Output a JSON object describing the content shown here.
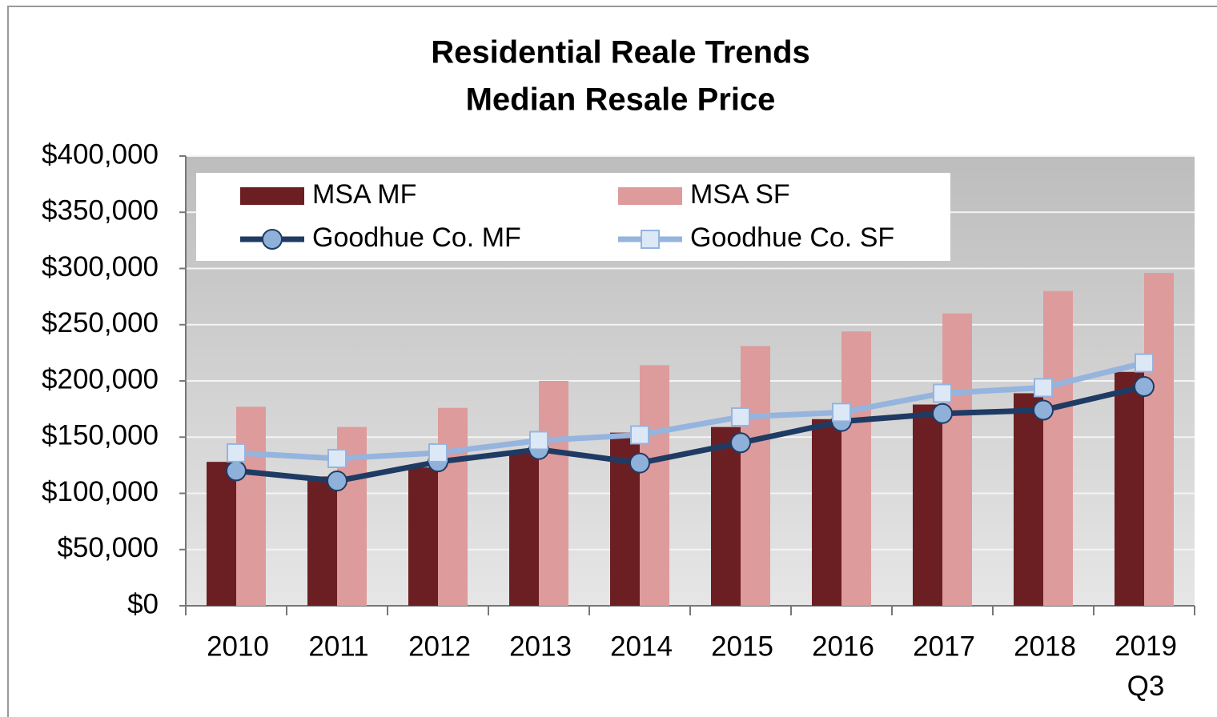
{
  "chart_data": {
    "type": "bar",
    "title": [
      "Residential Reale Trends",
      "Median Resale Price"
    ],
    "categories": [
      "2010",
      "2011",
      "2012",
      "2013",
      "2014",
      "2015",
      "2016",
      "2017",
      "2018",
      "2019 Q3"
    ],
    "series": [
      {
        "name": "MSA MF",
        "type": "bar",
        "color": "#6b1f22",
        "values": [
          128000,
          115000,
          123000,
          137000,
          154000,
          159000,
          166000,
          179000,
          189000,
          208000
        ]
      },
      {
        "name": "MSA SF",
        "type": "bar",
        "color": "#de9b9b",
        "values": [
          177000,
          159000,
          176000,
          200000,
          214000,
          231000,
          244000,
          260000,
          280000,
          296000
        ]
      },
      {
        "name": "Goodhue Co. MF",
        "type": "line",
        "color": "#1f3b63",
        "marker": "circle",
        "marker_color": "#8fb1d9",
        "values": [
          120000,
          111000,
          128000,
          139000,
          127000,
          145000,
          164000,
          171000,
          174000,
          195000
        ]
      },
      {
        "name": "Goodhue Co. SF",
        "type": "line",
        "color": "#95b4de",
        "marker": "square",
        "marker_color": "#dde8f6",
        "values": [
          136000,
          131000,
          136000,
          147000,
          152000,
          168000,
          172000,
          189000,
          194000,
          216000
        ]
      }
    ],
    "ylim": [
      0,
      400000
    ],
    "yticks": [
      {
        "value": 0,
        "label": "$0"
      },
      {
        "value": 50000,
        "label": "$50,000"
      },
      {
        "value": 100000,
        "label": "$100,000"
      },
      {
        "value": 150000,
        "label": "$150,000"
      },
      {
        "value": 200000,
        "label": "$200,000"
      },
      {
        "value": 250000,
        "label": "$250,000"
      },
      {
        "value": 300000,
        "label": "$300,000"
      },
      {
        "value": 350000,
        "label": "$350,000"
      },
      {
        "value": 400000,
        "label": "$400,000"
      }
    ],
    "grid": true,
    "legend": "top-left"
  }
}
